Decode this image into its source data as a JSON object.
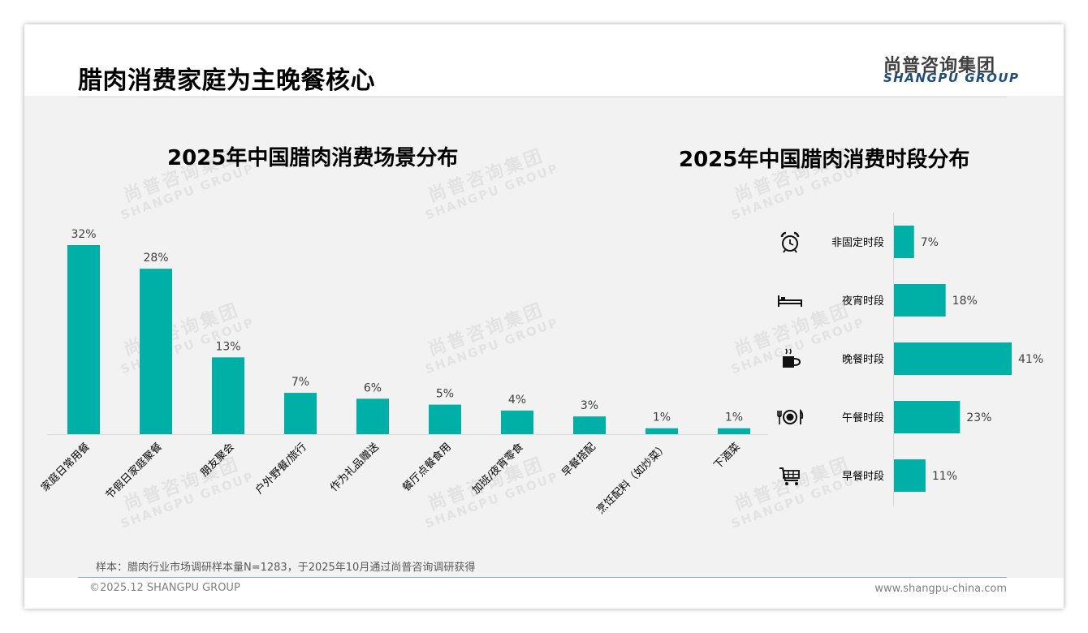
{
  "header": {
    "title": "腊肉消费家庭为主晚餐核心",
    "logo_cn": "尚普咨询集团",
    "logo_en": "SHANGPU GROUP"
  },
  "watermark": {
    "cn": "尚普咨询集团",
    "en": "SHANGPU GROUP"
  },
  "colors": {
    "bar": "#00b0a6",
    "text": "#404040",
    "axis": "#d9d9d9"
  },
  "chart_data": [
    {
      "type": "bar",
      "title": "2025年中国腊肉消费场景分布",
      "categories": [
        "家庭日常用餐",
        "节假日家庭聚餐",
        "朋友聚会",
        "户外野餐/旅行",
        "作为礼品赠送",
        "餐厅点餐食用",
        "加班/夜宵零食",
        "早餐搭配",
        "烹饪配料（如炒菜）",
        "下酒菜"
      ],
      "values": [
        32,
        28,
        13,
        7,
        6,
        5,
        4,
        3,
        1,
        1
      ],
      "unit": "%",
      "ylim": [
        0,
        32
      ]
    },
    {
      "type": "bar",
      "orientation": "horizontal",
      "title": "2025年中国腊肉消费时段分布",
      "categories": [
        "非固定时段",
        "夜宵时段",
        "晚餐时段",
        "午餐时段",
        "早餐时段"
      ],
      "icons": [
        "alarm-clock-icon",
        "bed-icon",
        "coffee-cup-icon",
        "plate-cutlery-icon",
        "shopping-cart-icon"
      ],
      "values": [
        7,
        18,
        41,
        23,
        11
      ],
      "unit": "%",
      "xlim": [
        0,
        41
      ]
    }
  ],
  "footer": {
    "note": "样本：腊肉行业市场调研样本量N=1283，于2025年10月通过尚普咨询调研获得",
    "copyright": "©2025.12 SHANGPU GROUP",
    "website": "www.shangpu-china.com"
  }
}
